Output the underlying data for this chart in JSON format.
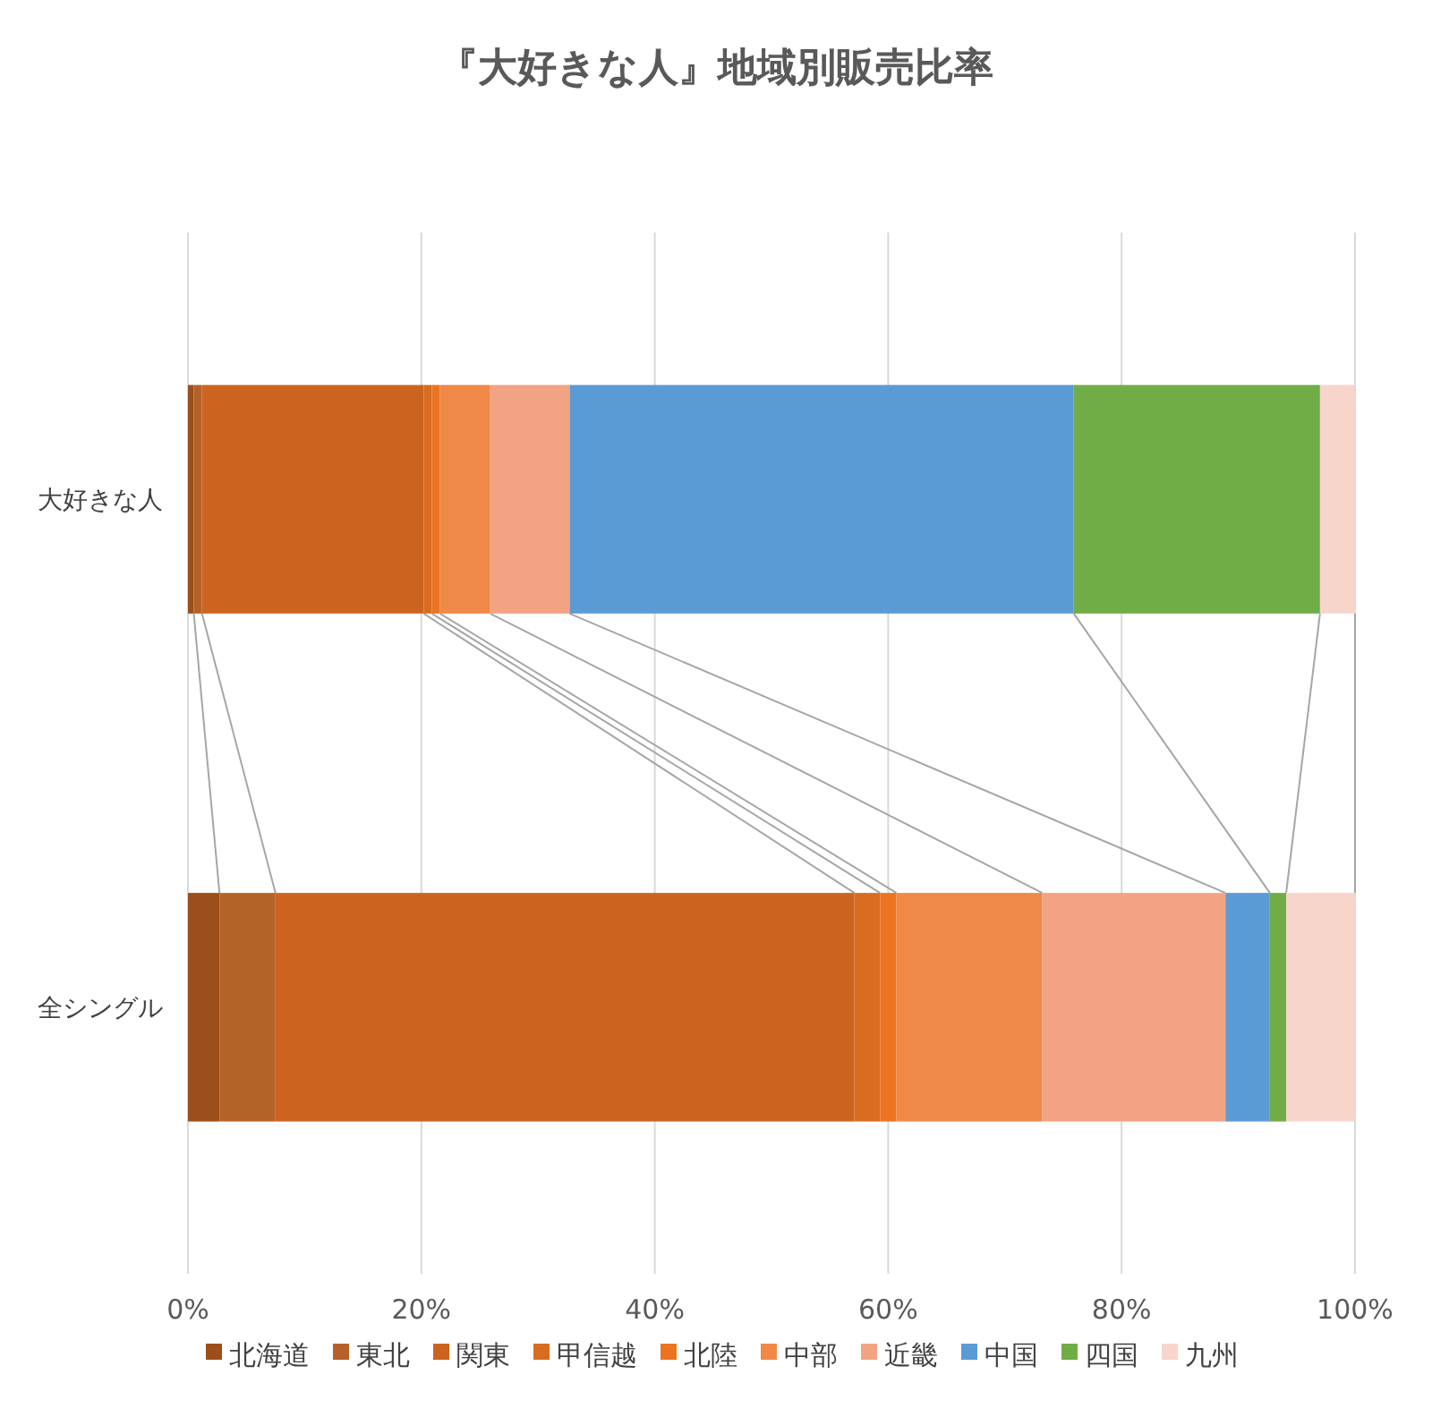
{
  "chart_data": {
    "type": "bar",
    "orientation": "horizontal",
    "stacked": true,
    "title": "『大好きな人』地域別販売比率",
    "categories": [
      "大好きな人",
      "全シングル"
    ],
    "series": [
      {
        "name": "北海道",
        "color": "#9c4f1a",
        "values": [
          0.5,
          2.7
        ]
      },
      {
        "name": "東北",
        "color": "#b5622a",
        "values": [
          0.7,
          4.8
        ]
      },
      {
        "name": "関東",
        "color": "#cc6420",
        "values": [
          19.0,
          49.6
        ]
      },
      {
        "name": "甲信越",
        "color": "#d86c20",
        "values": [
          0.7,
          2.2
        ]
      },
      {
        "name": "北陸",
        "color": "#ec7420",
        "values": [
          0.7,
          1.4
        ]
      },
      {
        "name": "中部",
        "color": "#f08848",
        "values": [
          4.3,
          12.5
        ]
      },
      {
        "name": "近畿",
        "color": "#f2a384",
        "values": [
          6.8,
          15.7
        ]
      },
      {
        "name": "中国",
        "color": "#5b9bd5",
        "values": [
          43.2,
          3.8
        ]
      },
      {
        "name": "四国",
        "color": "#70ad47",
        "values": [
          21.1,
          1.4
        ]
      },
      {
        "name": "九州",
        "color": "#f8d5ca",
        "values": [
          3.0,
          5.9
        ]
      }
    ],
    "xlim": [
      0,
      100
    ],
    "xticks": [
      {
        "value": 0,
        "label": "0%"
      },
      {
        "value": 20,
        "label": "20%"
      },
      {
        "value": 40,
        "label": "40%"
      },
      {
        "value": 60,
        "label": "60%"
      },
      {
        "value": 80,
        "label": "80%"
      },
      {
        "value": 100,
        "label": "100%"
      }
    ],
    "grid": "x",
    "legend": "bottom"
  }
}
